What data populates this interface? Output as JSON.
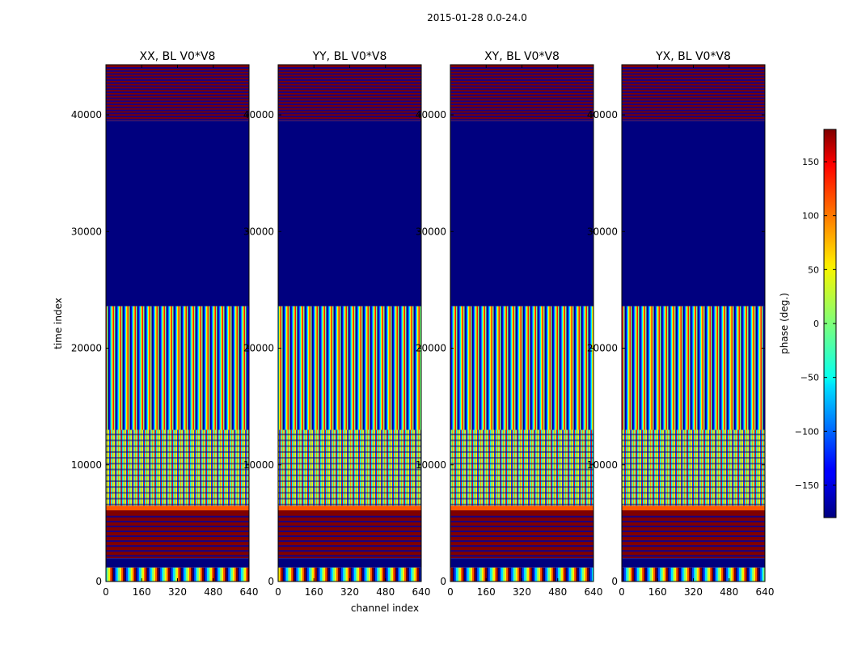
{
  "figure": {
    "suptitle": "2015-01-28 0.0-24.0"
  },
  "chart_data": {
    "type": "heatmap",
    "colormap": "jet",
    "x_label": "channel index",
    "y_label": "time index",
    "xlim": [
      0,
      640
    ],
    "ylim": [
      0,
      44300
    ],
    "x_ticks": [
      0,
      160,
      320,
      480,
      640
    ],
    "y_ticks": [
      0,
      10000,
      20000,
      30000,
      40000
    ],
    "x_tick_labels": [
      "0",
      "160",
      "320",
      "480",
      "640"
    ],
    "y_tick_labels": [
      "0",
      "10000",
      "20000",
      "30000",
      "40000"
    ],
    "panels": [
      {
        "title": "XX, BL V0*V8"
      },
      {
        "title": "YY, BL V0*V8"
      },
      {
        "title": "XY, BL V0*V8"
      },
      {
        "title": "YX, BL V0*V8"
      }
    ],
    "bands": [
      {
        "from": 0,
        "to": 1200,
        "value": "fringe"
      },
      {
        "from": 1200,
        "to": 2000,
        "value": -180
      },
      {
        "from": 2000,
        "to": 6100,
        "value": 180
      },
      {
        "from": 6100,
        "to": 6500,
        "value": "transition"
      },
      {
        "from": 6500,
        "to": 13000,
        "value": "noise"
      },
      {
        "from": 13000,
        "to": 23600,
        "value": "fringe-noise"
      },
      {
        "from": 23600,
        "to": 39500,
        "value": -180
      },
      {
        "from": 39500,
        "to": 44300,
        "value": 180
      }
    ],
    "colorbar": {
      "label": "phase (deg.)",
      "range": [
        -180,
        180
      ],
      "ticks": [
        150,
        100,
        50,
        0,
        -50,
        -100,
        -150
      ],
      "tick_labels": [
        "150",
        "100",
        "50",
        "0",
        "−50",
        "−100",
        "−150"
      ]
    }
  }
}
